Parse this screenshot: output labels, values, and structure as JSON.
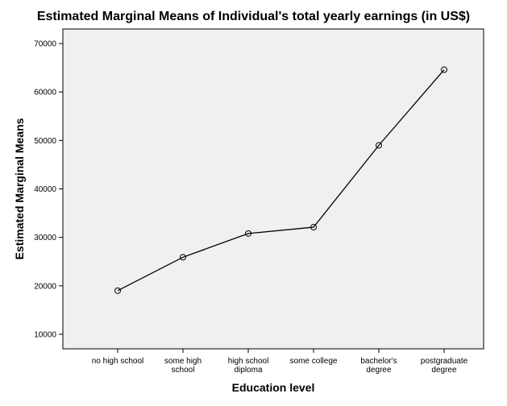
{
  "chart_data": {
    "type": "line",
    "title": "Estimated Marginal Means of Individual's total yearly earnings (in US$)",
    "xlabel": "Education level",
    "ylabel": "Estimated Marginal Means",
    "categories": [
      [
        "no high school"
      ],
      [
        "some high",
        "school"
      ],
      [
        "high school",
        "diploma"
      ],
      [
        "some college"
      ],
      [
        "bachelor's",
        "degree"
      ],
      [
        "postgraduate",
        "degree"
      ]
    ],
    "series": [
      {
        "values": [
          19000,
          25900,
          30800,
          32100,
          49000,
          64600
        ]
      }
    ],
    "yticks": [
      "10000",
      "20000",
      "30000",
      "40000",
      "50000",
      "60000",
      "70000"
    ],
    "ylim": [
      7000,
      73000
    ],
    "grid": false,
    "marker": "open-circle",
    "colors": {
      "plot_background": "#f0f0f0",
      "line": "#000000",
      "axis": "#000000"
    }
  }
}
